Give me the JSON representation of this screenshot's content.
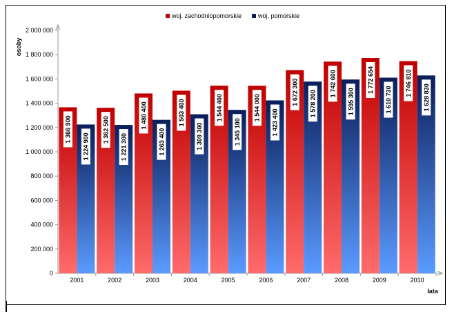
{
  "chart_data": {
    "type": "bar",
    "categories": [
      "2001",
      "2002",
      "2003",
      "2004",
      "2005",
      "2006",
      "2007",
      "2008",
      "2009",
      "2010"
    ],
    "series": [
      {
        "name": "woj. zachodniopomorskie",
        "values": [
          1366900,
          1362500,
          1480400,
          1503400,
          1544400,
          1544000,
          1672300,
          1742600,
          1772654,
          1746810
        ],
        "labels": [
          "1 366 900",
          "1 362 500",
          "1 480 400",
          "1 503 400",
          "1 544 400",
          "1 544 000",
          "1 672 300",
          "1 742 600",
          "1 772 654",
          "1 746 810"
        ],
        "color_top": "#c00000",
        "color_bottom": "#ff6b6b"
      },
      {
        "name": "woj. pomorskie",
        "values": [
          1224900,
          1221300,
          1263400,
          1309300,
          1345100,
          1423400,
          1578200,
          1595300,
          1610730,
          1628830
        ],
        "labels": [
          "1 224 900",
          "1 221 300",
          "1 263 400",
          "1 309 300",
          "1 345 100",
          "1 423 400",
          "1 578 200",
          "1 595 300",
          "1 610 730",
          "1 628 830"
        ],
        "color_top": "#0a1e5a",
        "color_bottom": "#5b9bff"
      }
    ],
    "xlabel": "lata",
    "ylabel": "osoby",
    "ylim": [
      0,
      2000000
    ],
    "yticks": [
      0,
      200000,
      400000,
      600000,
      800000,
      1000000,
      1200000,
      1400000,
      1600000,
      1800000,
      2000000
    ],
    "ytick_labels": [
      "0",
      "200 000",
      "400 000",
      "600 000",
      "800 000",
      "1 000 000",
      "1 200 000",
      "1 400 000",
      "1 600 000",
      "1 800 000",
      "2 000 000"
    ],
    "legend_position": "top-center",
    "grid": false
  }
}
